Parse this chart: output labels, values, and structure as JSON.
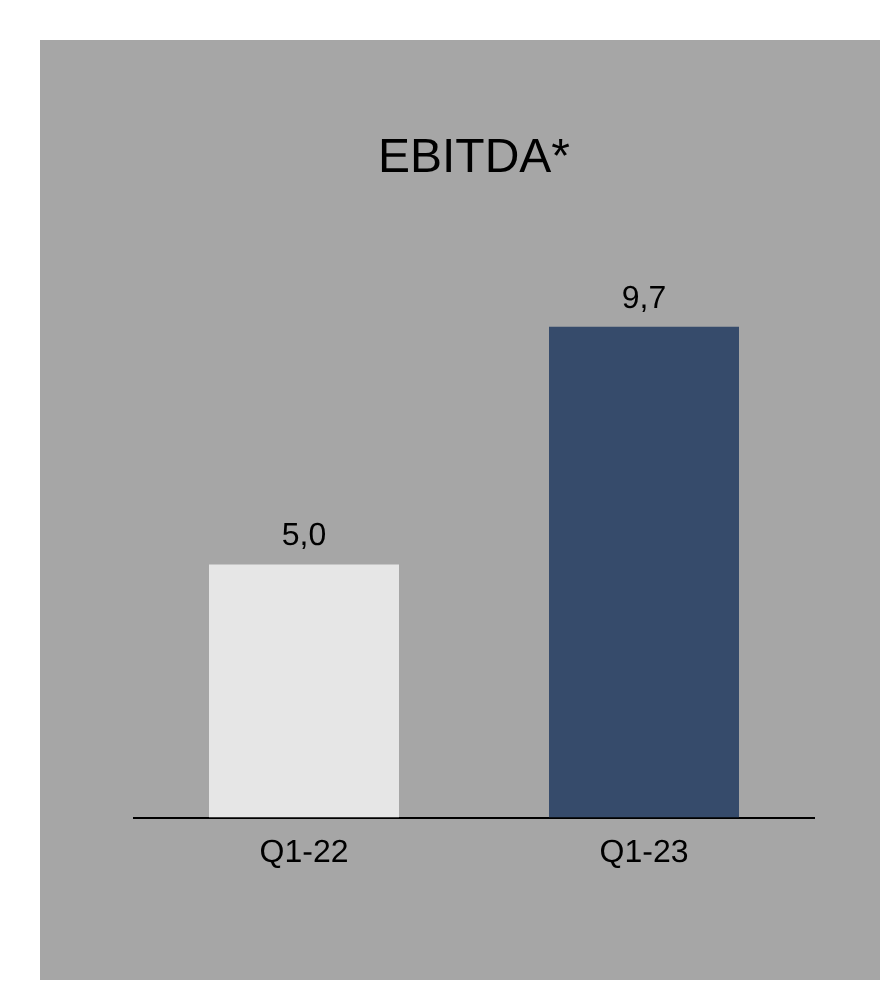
{
  "chart_data": {
    "type": "bar",
    "title": "EBITDA*",
    "categories": [
      "Q1-22",
      "Q1-23"
    ],
    "values": [
      5.0,
      9.7
    ],
    "colors": [
      "#e6e6e6",
      "#364b6b"
    ],
    "value_labels": [
      "5,0",
      "9,7"
    ],
    "grid": false,
    "legend": false
  }
}
